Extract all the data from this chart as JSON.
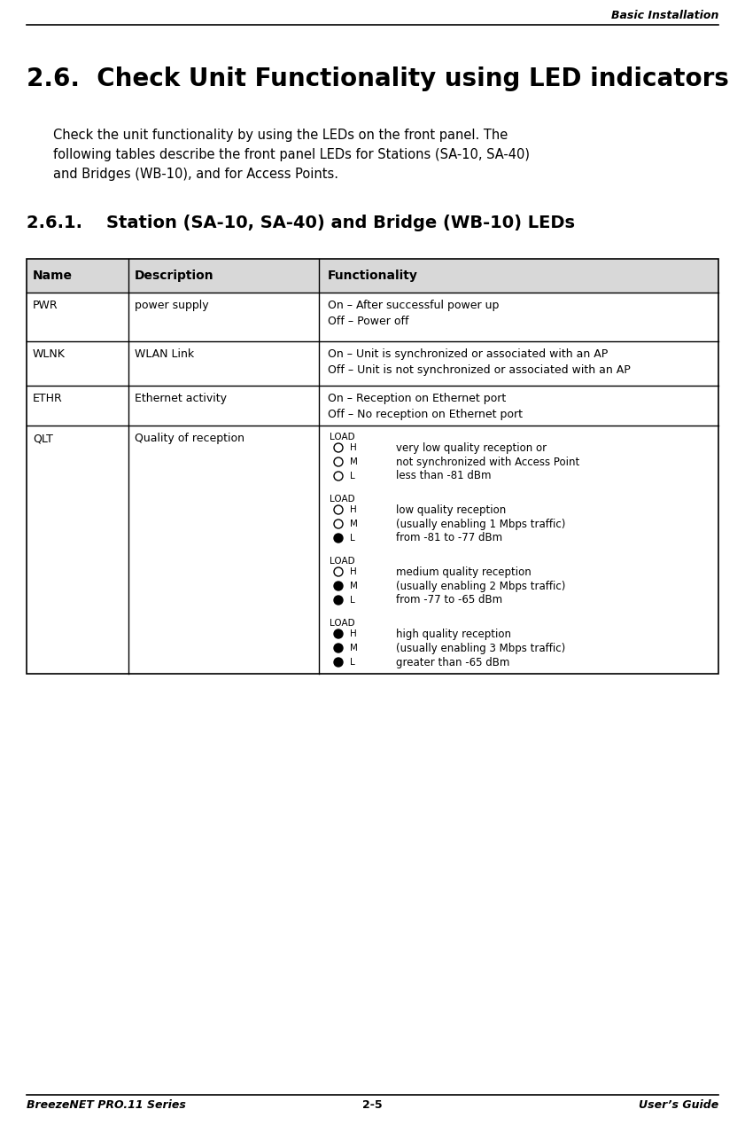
{
  "header_right": "Basic Installation",
  "title": "2.6.  Check Unit Functionality using LED indicators",
  "intro_line1": "Check the unit functionality by using the LEDs on the front panel. The",
  "intro_line2": "following tables describe the front panel LEDs for Stations (SA-10, SA-40)",
  "intro_line3": "and Bridges (WB-10), and for Access Points.",
  "subtitle": "2.6.1.    Station (SA-10, SA-40) and Bridge (WB-10) LEDs",
  "table_headers": [
    "Name",
    "Description",
    "Functionality"
  ],
  "footer_left": "BreezeNET PRO.11 Series",
  "footer_center": "2-5",
  "footer_right": "User’s Guide",
  "bg_color": "#ffffff",
  "rows": [
    {
      "name": "PWR",
      "description": "power supply",
      "functionality": [
        "On – After successful power up",
        "Off – Power off"
      ]
    },
    {
      "name": "WLNK",
      "description": "WLAN Link",
      "functionality": [
        "On – Unit is synchronized or associated with an AP",
        "Off – Unit is not synchronized or associated with an AP"
      ]
    },
    {
      "name": "ETHR",
      "description": "Ethernet activity",
      "functionality": [
        "On – Reception on Ethernet port",
        "Off – No reception on Ethernet port"
      ]
    },
    {
      "name": "QLT",
      "description": "Quality of reception",
      "functionality": []
    }
  ],
  "qlt_groups": [
    {
      "indicators": [
        false,
        false,
        false
      ],
      "lines": [
        "very low quality reception or",
        "not synchronized with Access Point",
        "less than -81 dBm"
      ]
    },
    {
      "indicators": [
        false,
        false,
        true
      ],
      "lines": [
        "low quality reception",
        "(usually enabling 1 Mbps traffic)",
        "from -81 to -77 dBm"
      ]
    },
    {
      "indicators": [
        false,
        true,
        true
      ],
      "lines": [
        "medium quality reception",
        "(usually enabling 2 Mbps traffic)",
        "from -77 to -65 dBm"
      ]
    },
    {
      "indicators": [
        true,
        true,
        true
      ],
      "lines": [
        "high quality reception",
        "(usually enabling 3 Mbps traffic)",
        "greater than -65 dBm"
      ]
    }
  ]
}
